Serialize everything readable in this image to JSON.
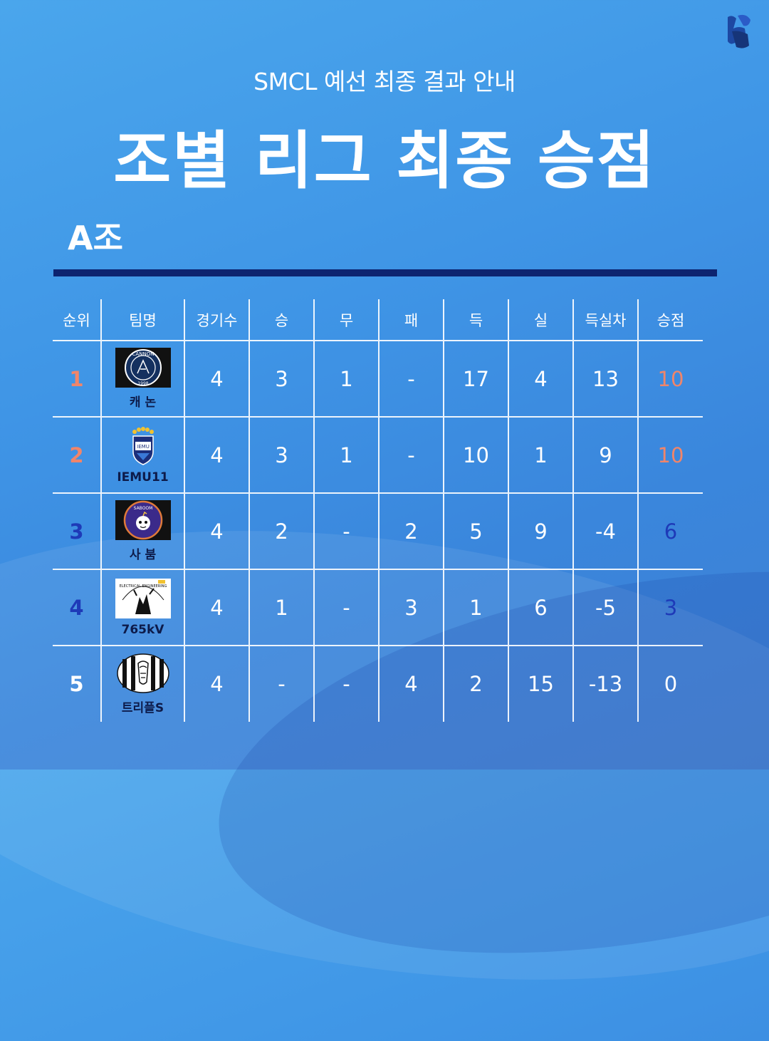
{
  "header": {
    "subtitle": "SMCL 예선 최종 결과 안내",
    "title": "조별 리그 최종 승점",
    "group": "A조"
  },
  "brand": {
    "logo_icon": "club-emblem-icon"
  },
  "colors": {
    "top_rank": "#f0856a",
    "mid_rank": "#1e3ab8",
    "low_rank": "#0d1b4a",
    "rule": "#0d2470"
  },
  "table": {
    "headers": [
      "순위",
      "팀명",
      "경기수",
      "승",
      "무",
      "패",
      "득",
      "실",
      "득실차",
      "승점"
    ],
    "rows": [
      {
        "rank": "1",
        "team": "캐 논",
        "logo": "cannon-logo",
        "played": "4",
        "win": "3",
        "draw": "1",
        "loss": "-",
        "gf": "17",
        "ga": "4",
        "gd": "13",
        "pts": "10",
        "tone": "top"
      },
      {
        "rank": "2",
        "team": "IEMU11",
        "logo": "iemu11-logo",
        "played": "4",
        "win": "3",
        "draw": "1",
        "loss": "-",
        "gf": "10",
        "ga": "1",
        "gd": "9",
        "pts": "10",
        "tone": "top"
      },
      {
        "rank": "3",
        "team": "사 붐",
        "logo": "saboom-logo",
        "played": "4",
        "win": "2",
        "draw": "-",
        "loss": "2",
        "gf": "5",
        "ga": "9",
        "gd": "-4",
        "pts": "6",
        "tone": "mid"
      },
      {
        "rank": "4",
        "team": "765kV",
        "logo": "765kv-logo",
        "played": "4",
        "win": "1",
        "draw": "-",
        "loss": "3",
        "gf": "1",
        "ga": "6",
        "gd": "-5",
        "pts": "3",
        "tone": "mid"
      },
      {
        "rank": "5",
        "team": "트리플S",
        "logo": "triples-logo",
        "played": "4",
        "win": "-",
        "draw": "-",
        "loss": "4",
        "gf": "2",
        "ga": "15",
        "gd": "-13",
        "pts": "0",
        "tone": "low"
      }
    ],
    "logo_texts": {
      "cannon_top": "CANNON",
      "cannon_year": "1998",
      "iemu": "IEMU",
      "saboom": "SABOOM",
      "ee": "ELECTRICAL ENGINEERING"
    }
  }
}
